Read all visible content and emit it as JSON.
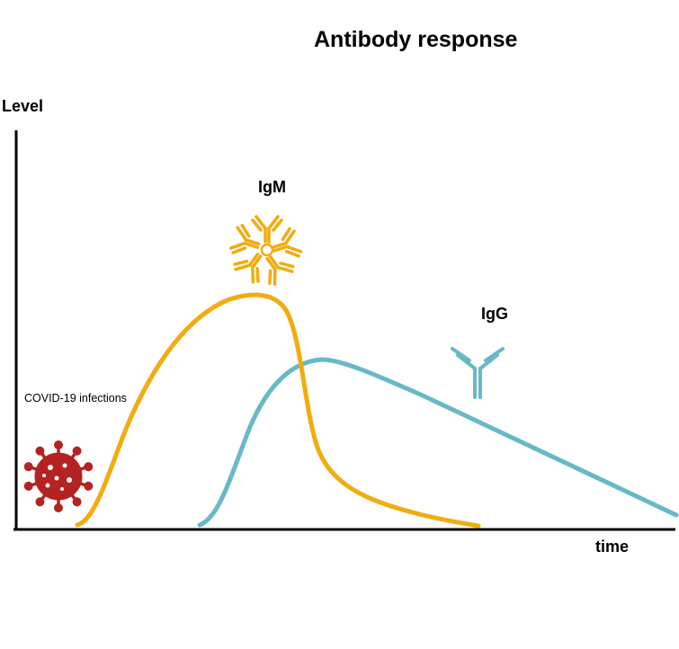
{
  "title": "Antibody response",
  "axes": {
    "y_label": "Level",
    "x_label": "time"
  },
  "labels": {
    "igm": "IgM",
    "igg": "IgG",
    "infection": "COVID-19 infections"
  },
  "colors": {
    "igm": "#f2ac0f",
    "igg": "#67b8c8",
    "virus": "#b52222",
    "axis": "#000000"
  },
  "icons": {
    "virus": "virus-icon",
    "igm": "igm-pentamer-icon",
    "igg": "igg-antibody-icon"
  }
}
